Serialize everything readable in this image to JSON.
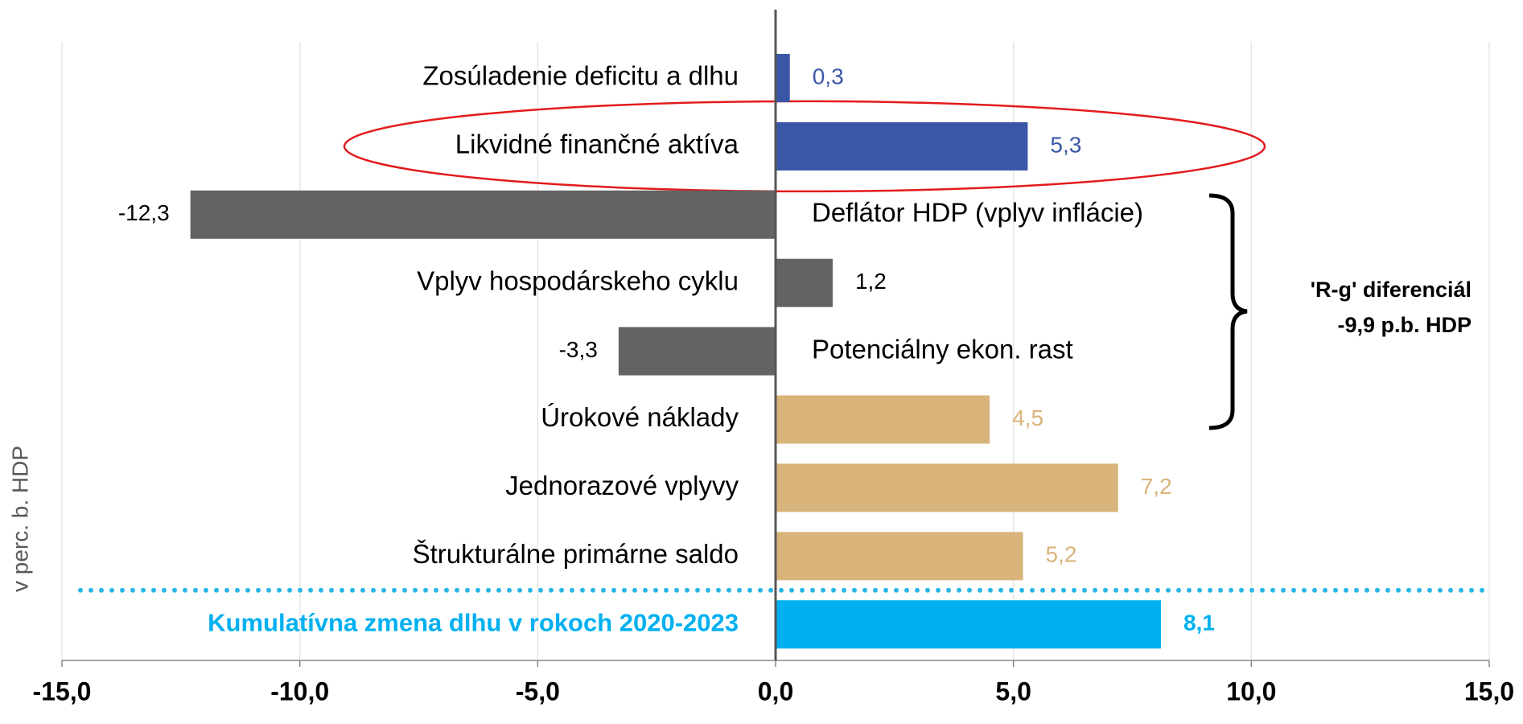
{
  "chart_data": {
    "type": "bar",
    "orientation": "horizontal",
    "y_axis_label": "v perc. b. HDP",
    "categories": [
      "Zosúladenie deficitu a dlhu",
      "Likvidné finančné aktíva",
      "Deflátor HDP (vplyv inflácie)",
      "Vplyv hospodárskeho cyklu",
      "Potenciálny ekon. rast",
      "Úrokové náklady",
      "Jednorazové vplyvy",
      "Štrukturálne primárne saldo",
      "Kumulatívna zmena dlhu v rokoch 2020-2023"
    ],
    "values": [
      0.3,
      5.3,
      -12.3,
      1.2,
      -3.3,
      4.5,
      7.2,
      5.2,
      8.1
    ],
    "value_labels": [
      "0,3",
      "5,3",
      "-12,3",
      "1,2",
      "-3,3",
      "4,5",
      "7,2",
      "5,2",
      "8,1"
    ],
    "colors": [
      "#3a57a7",
      "#3a57a7",
      "#636363",
      "#636363",
      "#636363",
      "#d9b47a",
      "#d9b47a",
      "#d9b47a",
      "#00b0f0"
    ],
    "xlim": [
      -15,
      15
    ],
    "xticks": [
      {
        "value": -15,
        "label": "-15,0"
      },
      {
        "value": -10,
        "label": "-10,0"
      },
      {
        "value": -5,
        "label": "-5,0"
      },
      {
        "value": 0,
        "label": "0,0"
      },
      {
        "value": 5,
        "label": "5,0"
      },
      {
        "value": 10,
        "label": "10,0"
      },
      {
        "value": 15,
        "label": "15,0"
      }
    ],
    "grid": true,
    "annotations": [
      "'R-g' diferenciál",
      "-9,9 p.b. HDP"
    ]
  }
}
